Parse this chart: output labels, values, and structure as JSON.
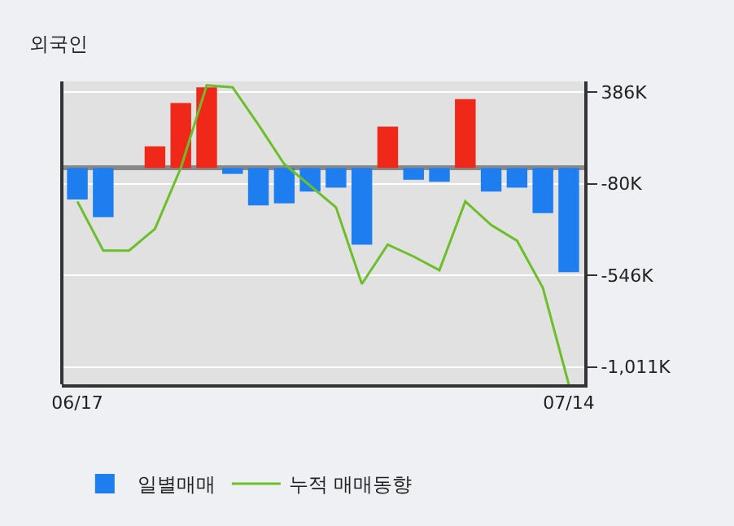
{
  "chart_data": {
    "type": "bar",
    "title": "외국인",
    "categories": [
      "06/17",
      null,
      null,
      null,
      null,
      null,
      null,
      null,
      null,
      null,
      null,
      null,
      null,
      null,
      null,
      null,
      null,
      null,
      null,
      "07/14"
    ],
    "series": [
      {
        "name": "일별매매",
        "colors": [
          "#1e7ef0",
          "#1e7ef0",
          "#1e7ef0",
          "#f0281a",
          "#f0281a",
          "#f0281a",
          "#1e7ef0",
          "#1e7ef0",
          "#1e7ef0",
          "#1e7ef0",
          "#1e7ef0",
          "#1e7ef0",
          "#f0281a",
          "#1e7ef0",
          "#1e7ef0",
          "#f0281a",
          "#1e7ef0",
          "#1e7ef0",
          "#1e7ef0",
          "#1e7ef0"
        ],
        "values": [
          -160,
          -250,
          0,
          110,
          330,
          410,
          -30,
          -190,
          -180,
          -120,
          -100,
          -390,
          210,
          -60,
          -70,
          350,
          -120,
          -100,
          -230,
          -530
        ]
      },
      {
        "name": "누적 매매동향",
        "type": "line",
        "color": "#6cbf2a",
        "values": [
          -170,
          -420,
          -420,
          -310,
          0,
          420,
          410,
          220,
          20,
          -90,
          -200,
          -590,
          -390,
          -450,
          -520,
          -170,
          -290,
          -370,
          -610,
          -1100
        ]
      }
    ],
    "ylim": [
      -1100,
      440
    ],
    "yticks": [
      {
        "value": 386,
        "label": "386K"
      },
      {
        "value": -80,
        "label": "-80K"
      },
      {
        "value": -546,
        "label": "-546K"
      },
      {
        "value": -1011,
        "label": "-1,011K"
      }
    ],
    "grid": "y",
    "legend": "bottom",
    "marker": "none"
  }
}
